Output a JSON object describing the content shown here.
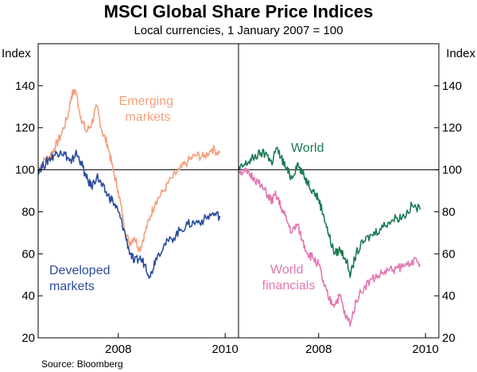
{
  "chart_data": {
    "type": "line",
    "title": "MSCI Global Share Price Indices",
    "subtitle": "Local currencies, 1 January 2007 = 100",
    "ylabel_left": "Index",
    "ylabel_right": "Index",
    "ylim": [
      20,
      160
    ],
    "yticks": [
      20,
      40,
      60,
      80,
      100,
      120,
      140
    ],
    "xlim": [
      2007.0,
      2010.75
    ],
    "xticks": [
      {
        "at": 2008.5,
        "label": "2008"
      },
      {
        "at": 2010.5,
        "label": "2010"
      }
    ],
    "reference_line": 100,
    "source": "Source: Bloomberg",
    "panels": [
      {
        "name": "left",
        "series": [
          {
            "name": "Emerging markets",
            "label_lines": [
              "Emerging",
              "markets"
            ],
            "color": "#f4a07c",
            "x": [
              2007.0,
              2007.1,
              2007.2,
              2007.3,
              2007.42,
              2007.55,
              2007.62,
              2007.7,
              2007.8,
              2007.9,
              2008.0,
              2008.1,
              2008.2,
              2008.3,
              2008.4,
              2008.5,
              2008.6,
              2008.7,
              2008.8,
              2008.9,
              2009.0,
              2009.1,
              2009.2,
              2009.35,
              2009.5,
              2009.65,
              2009.8,
              2009.95,
              2010.1,
              2010.25,
              2010.4
            ],
            "y": [
              100,
              104,
              106,
              110,
              116,
              125,
              135,
              138,
              125,
              118,
              122,
              130,
              118,
              112,
              100,
              90,
              75,
              65,
              68,
              62,
              70,
              78,
              85,
              90,
              96,
              100,
              104,
              107,
              106,
              110,
              108
            ]
          },
          {
            "name": "Developed markets",
            "label_lines": [
              "Developed",
              "markets"
            ],
            "color": "#2b4c9b",
            "x": [
              2007.0,
              2007.1,
              2007.2,
              2007.3,
              2007.42,
              2007.55,
              2007.62,
              2007.7,
              2007.8,
              2007.9,
              2008.0,
              2008.1,
              2008.2,
              2008.3,
              2008.4,
              2008.5,
              2008.6,
              2008.7,
              2008.8,
              2008.9,
              2009.0,
              2009.1,
              2009.2,
              2009.35,
              2009.5,
              2009.65,
              2009.8,
              2009.95,
              2010.1,
              2010.25,
              2010.4
            ],
            "y": [
              100,
              102,
              105,
              107,
              109,
              106,
              103,
              108,
              104,
              96,
              92,
              97,
              92,
              88,
              85,
              80,
              72,
              62,
              56,
              58,
              55,
              49,
              58,
              64,
              67,
              71,
              74,
              75,
              76,
              79,
              78
            ]
          }
        ]
      },
      {
        "name": "right",
        "series": [
          {
            "name": "World",
            "label_lines": [
              "World"
            ],
            "color": "#1a7a52",
            "x": [
              2007.0,
              2007.1,
              2007.2,
              2007.3,
              2007.42,
              2007.55,
              2007.62,
              2007.7,
              2007.8,
              2007.9,
              2008.0,
              2008.1,
              2008.2,
              2008.3,
              2008.4,
              2008.5,
              2008.6,
              2008.7,
              2008.8,
              2008.9,
              2009.0,
              2009.1,
              2009.2,
              2009.35,
              2009.5,
              2009.65,
              2009.8,
              2009.95,
              2010.1,
              2010.25,
              2010.4
            ],
            "y": [
              100,
              102,
              104,
              106,
              108,
              107,
              103,
              110,
              106,
              100,
              96,
              103,
              98,
              94,
              90,
              86,
              78,
              68,
              60,
              62,
              58,
              50,
              60,
              66,
              69,
              72,
              75,
              77,
              78,
              83,
              81
            ]
          },
          {
            "name": "World financials",
            "label_lines": [
              "World",
              "financials"
            ],
            "color": "#e377b3",
            "x": [
              2007.0,
              2007.1,
              2007.2,
              2007.3,
              2007.42,
              2007.55,
              2007.62,
              2007.7,
              2007.8,
              2007.9,
              2008.0,
              2008.1,
              2008.2,
              2008.3,
              2008.4,
              2008.5,
              2008.6,
              2008.7,
              2008.8,
              2008.9,
              2009.0,
              2009.1,
              2009.2,
              2009.35,
              2009.5,
              2009.65,
              2009.8,
              2009.95,
              2010.1,
              2010.25,
              2010.4
            ],
            "y": [
              100,
              99,
              98,
              96,
              92,
              88,
              85,
              88,
              82,
              76,
              70,
              74,
              66,
              60,
              58,
              55,
              45,
              38,
              36,
              40,
              30,
              27,
              38,
              44,
              48,
              50,
              52,
              53,
              54,
              57,
              55
            ]
          }
        ]
      }
    ]
  }
}
